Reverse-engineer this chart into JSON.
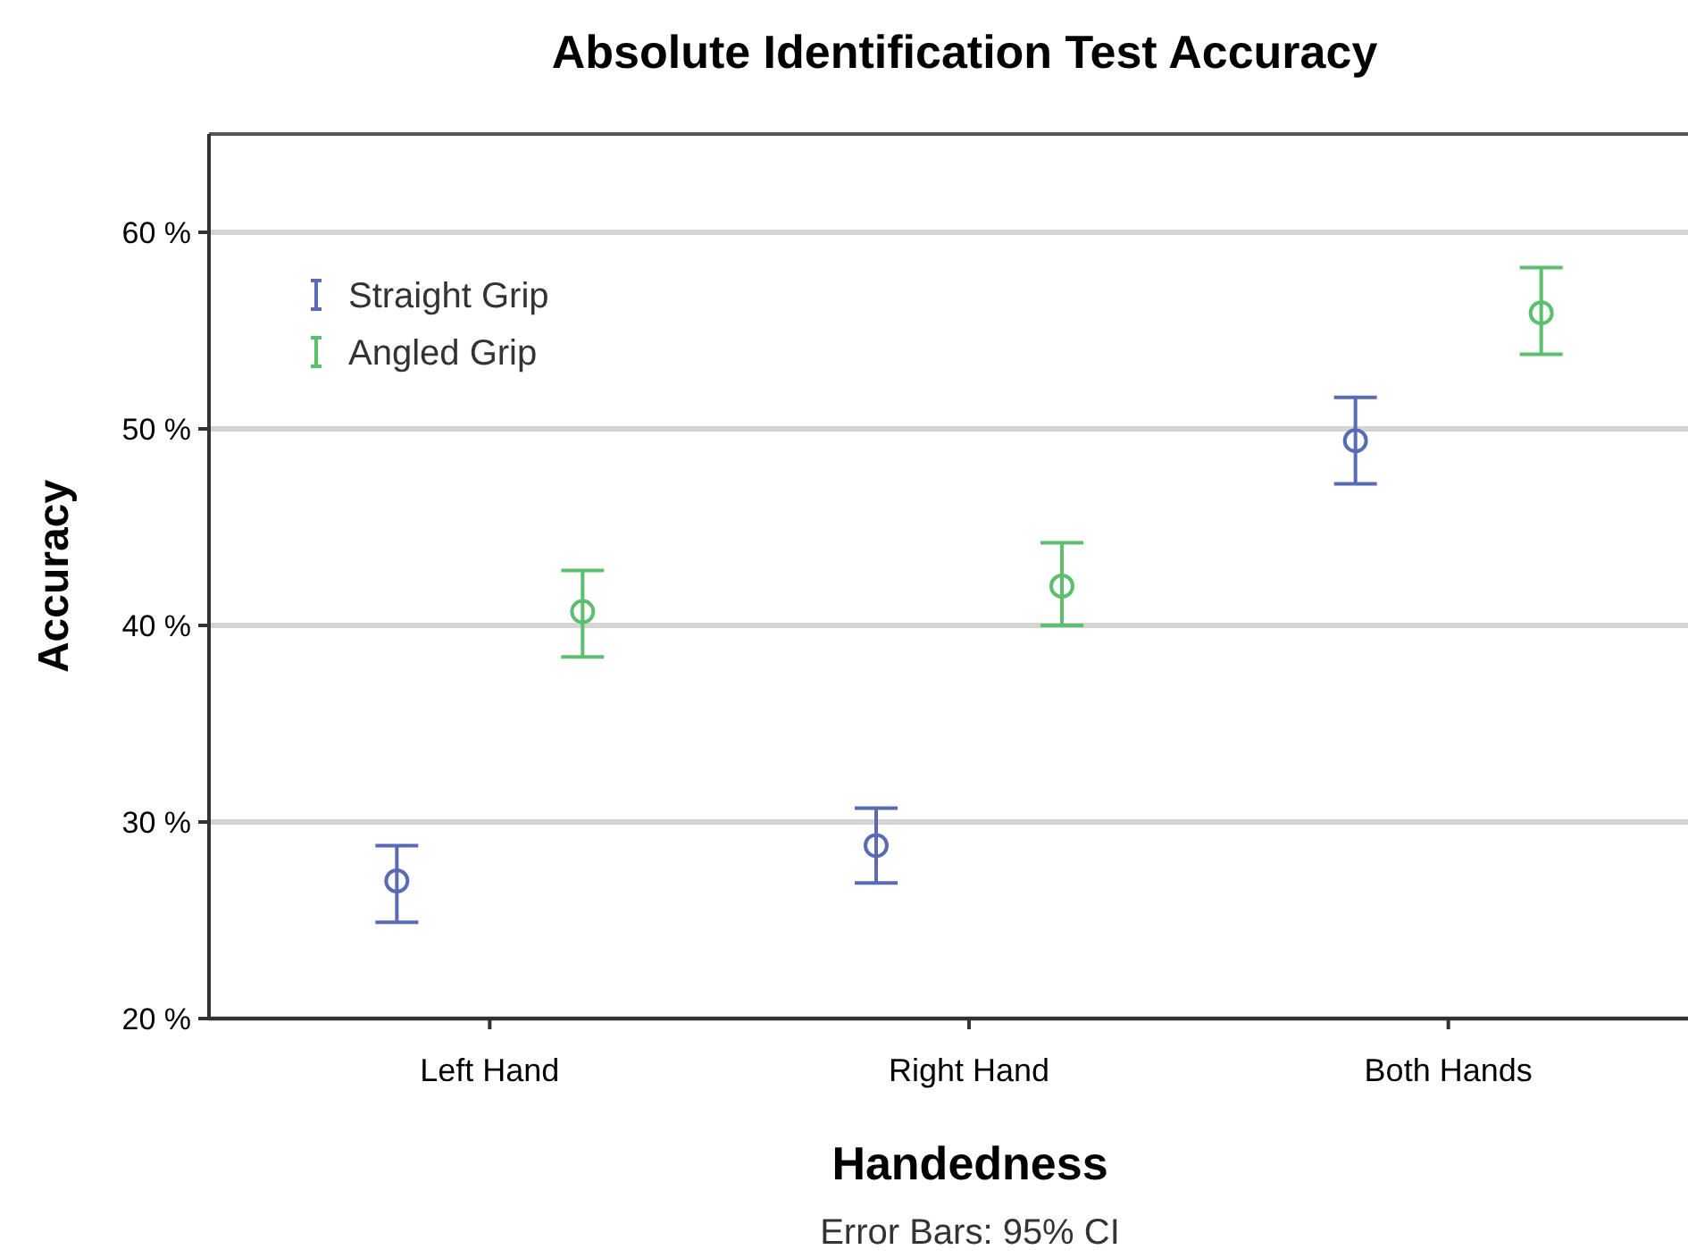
{
  "chart_data": {
    "type": "scatter",
    "title": "Absolute Identification Test Accuracy",
    "xlabel": "Handedness",
    "ylabel": "Accuracy",
    "categories": [
      "Left Hand",
      "Right Hand",
      "Both Hands"
    ],
    "series": [
      {
        "name": "Straight Grip",
        "color": "#5a6bb5",
        "values": [
          27.0,
          28.8,
          49.4
        ],
        "errors": [
          [
            24.9,
            28.8
          ],
          [
            26.9,
            30.7
          ],
          [
            47.2,
            51.6
          ]
        ]
      },
      {
        "name": "Angled Grip",
        "color": "#5cbf6e",
        "values": [
          40.7,
          42.0,
          55.9
        ],
        "errors": [
          [
            38.4,
            42.8
          ],
          [
            40.0,
            44.2
          ],
          [
            53.8,
            58.2
          ]
        ]
      }
    ],
    "ylim": [
      20,
      65
    ],
    "yticks": [
      {
        "value": 20,
        "label": "20 %"
      },
      {
        "value": 30,
        "label": "30 %"
      },
      {
        "value": 40,
        "label": "40 %"
      },
      {
        "value": 50,
        "label": "50 %"
      },
      {
        "value": 60,
        "label": "60 %"
      }
    ],
    "grid": "y",
    "legend": "top left",
    "marker": "circle",
    "annotations": [
      "Error Bars: 95% CI"
    ]
  }
}
